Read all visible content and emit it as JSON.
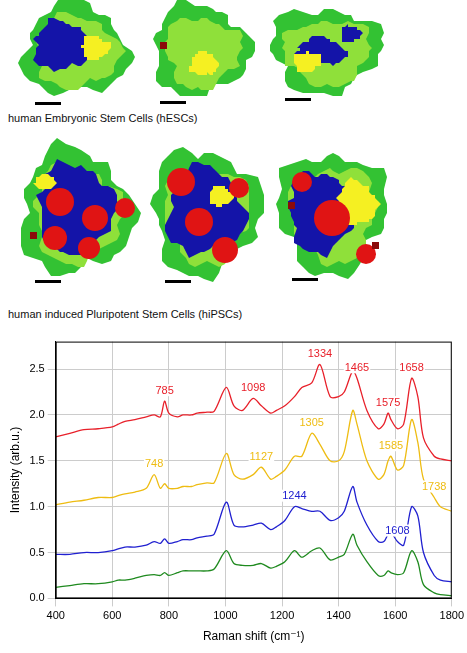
{
  "maps": [
    {
      "caption": "human Embryonic Stem Cells (hESCs)"
    },
    {
      "caption": "human induced Pluripotent Stem Cells (hiPSCs)"
    }
  ],
  "chart_data": {
    "type": "line",
    "x_label": "Raman shift (cm⁻¹)",
    "y_label": "Intensity (arb.u.)",
    "xlim": [
      400,
      1800
    ],
    "xticks": [
      400,
      600,
      800,
      1000,
      1200,
      1400,
      1600,
      1800
    ],
    "ylim": [
      0,
      2.8
    ],
    "yticks": [
      {
        "value": 0,
        "label": "0.0"
      },
      0.5,
      {
        "value": 1,
        "label": "1.0"
      },
      1.5,
      {
        "value": 2,
        "label": "2.0"
      },
      2.5
    ],
    "grid": true,
    "x": [
      400,
      450,
      500,
      550,
      600,
      621,
      645,
      680,
      720,
      748,
      770,
      785,
      800,
      830,
      850,
      880,
      900,
      935,
      960,
      1003,
      1030,
      1060,
      1098,
      1127,
      1160,
      1180,
      1210,
      1244,
      1270,
      1305,
      1334,
      1370,
      1400,
      1420,
      1450,
      1465,
      1500,
      1540,
      1560,
      1575,
      1585,
      1608,
      1630,
      1658,
      1680,
      1700,
      1738,
      1760,
      1800
    ],
    "series": [
      {
        "color": "#e8202a",
        "peaks": [
          785,
          1098,
          1334,
          1465,
          1575,
          1658
        ],
        "values": [
          1.76,
          1.8,
          1.84,
          1.85,
          1.87,
          1.9,
          1.93,
          1.95,
          1.98,
          2.0,
          1.98,
          2.15,
          2.02,
          1.98,
          2.0,
          2.0,
          2.02,
          2.03,
          2.04,
          2.3,
          2.1,
          2.05,
          2.18,
          2.1,
          2.02,
          2.05,
          2.1,
          2.2,
          2.3,
          2.35,
          2.55,
          2.2,
          2.2,
          2.25,
          2.48,
          2.4,
          2.05,
          1.85,
          1.9,
          2.02,
          1.95,
          1.85,
          1.9,
          2.4,
          2.2,
          1.75,
          1.55,
          1.52,
          1.5
        ]
      },
      {
        "color": "#eebc12",
        "peaks": [
          748,
          1127,
          1305,
          1585,
          1738
        ],
        "values": [
          1.02,
          1.05,
          1.07,
          1.1,
          1.1,
          1.12,
          1.14,
          1.16,
          1.2,
          1.35,
          1.2,
          1.25,
          1.2,
          1.2,
          1.22,
          1.22,
          1.24,
          1.26,
          1.26,
          1.58,
          1.35,
          1.3,
          1.35,
          1.43,
          1.3,
          1.33,
          1.4,
          1.55,
          1.55,
          1.8,
          1.68,
          1.5,
          1.5,
          1.6,
          2.05,
          1.9,
          1.5,
          1.3,
          1.35,
          1.5,
          1.55,
          1.4,
          1.45,
          1.95,
          1.7,
          1.3,
          1.1,
          1.0,
          0.95
        ]
      },
      {
        "color": "#2020d0",
        "peaks": [
          1244,
          1608
        ],
        "values": [
          0.48,
          0.48,
          0.5,
          0.5,
          0.52,
          0.54,
          0.56,
          0.56,
          0.58,
          0.62,
          0.6,
          0.65,
          0.6,
          0.62,
          0.64,
          0.64,
          0.66,
          0.68,
          0.7,
          1.05,
          0.8,
          0.78,
          0.8,
          0.82,
          0.75,
          0.78,
          0.85,
          1.0,
          0.98,
          0.95,
          0.95,
          0.85,
          0.88,
          0.95,
          1.22,
          1.05,
          0.8,
          0.62,
          0.62,
          0.7,
          0.72,
          0.62,
          0.58,
          1.0,
          0.9,
          0.5,
          0.25,
          0.2,
          0.18
        ]
      },
      {
        "color": "#1f8a1f",
        "values": [
          0.12,
          0.14,
          0.16,
          0.16,
          0.18,
          0.2,
          0.2,
          0.22,
          0.25,
          0.26,
          0.25,
          0.28,
          0.25,
          0.28,
          0.3,
          0.3,
          0.3,
          0.3,
          0.32,
          0.52,
          0.38,
          0.36,
          0.36,
          0.38,
          0.33,
          0.35,
          0.4,
          0.52,
          0.45,
          0.52,
          0.55,
          0.42,
          0.45,
          0.48,
          0.7,
          0.58,
          0.4,
          0.25,
          0.25,
          0.3,
          0.28,
          0.26,
          0.28,
          0.52,
          0.4,
          0.15,
          0.06,
          0.04,
          0.03
        ]
      }
    ]
  }
}
